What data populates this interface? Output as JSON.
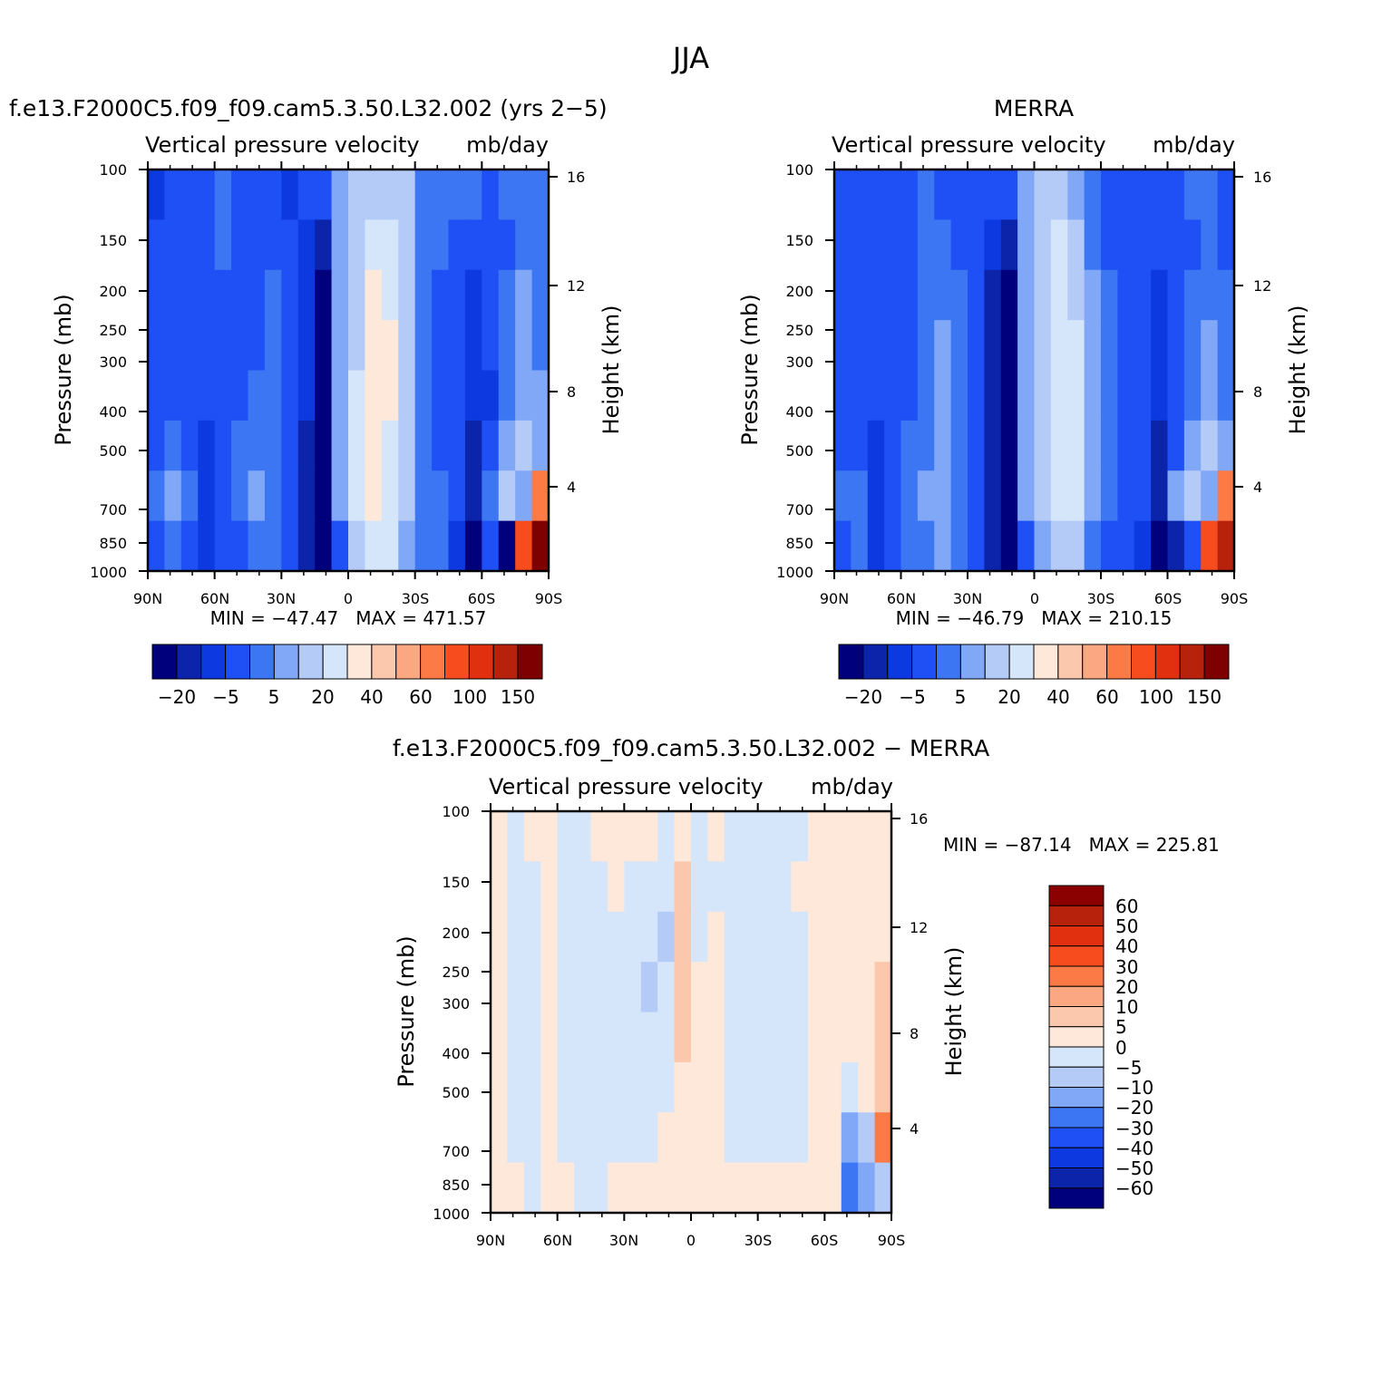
{
  "page_title": "JJA",
  "chart_data": [
    {
      "type": "heatmap",
      "panel_title": "f.e13.F2000C5.f09_f09.cam5.3.50.L32.002 (yrs 2−5)",
      "subtitle_left": "Vertical pressure velocity",
      "subtitle_right": "mb/day",
      "ylabel": "Pressure (mb)",
      "ylabel_right": "Height (km)",
      "x_ticks": [
        "90N",
        "60N",
        "30N",
        "0",
        "30S",
        "60S",
        "90S"
      ],
      "y_ticks": [
        "100",
        "150",
        "200",
        "250",
        "300",
        "400",
        "500",
        "700",
        "850",
        "1000"
      ],
      "y_ticks_right": [
        "16",
        "12",
        "8",
        "4"
      ],
      "stats": "MIN = −47.47   MAX = 471.57",
      "colorbar_labels": [
        "−20",
        "−5",
        "5",
        "20",
        "40",
        "60",
        "100",
        "150"
      ],
      "field": [
        [
          2,
          3,
          3,
          3,
          4,
          3,
          3,
          3,
          2,
          3,
          3,
          5,
          6,
          6,
          6,
          6,
          4,
          4,
          4,
          4,
          3,
          4,
          4,
          4
        ],
        [
          3,
          3,
          3,
          3,
          4,
          3,
          3,
          3,
          3,
          2,
          1,
          5,
          6,
          7,
          7,
          6,
          4,
          4,
          3,
          3,
          3,
          3,
          4,
          4
        ],
        [
          3,
          3,
          3,
          3,
          3,
          3,
          3,
          4,
          3,
          2,
          0,
          5,
          6,
          8,
          7,
          6,
          4,
          3,
          3,
          2,
          3,
          4,
          5,
          4
        ],
        [
          3,
          3,
          3,
          3,
          3,
          3,
          3,
          4,
          3,
          2,
          0,
          5,
          6,
          8,
          8,
          6,
          4,
          3,
          3,
          2,
          3,
          4,
          5,
          4
        ],
        [
          3,
          3,
          3,
          3,
          3,
          3,
          4,
          4,
          3,
          2,
          0,
          5,
          7,
          8,
          8,
          6,
          4,
          3,
          3,
          2,
          2,
          4,
          5,
          5
        ],
        [
          3,
          4,
          3,
          2,
          3,
          4,
          4,
          4,
          3,
          1,
          0,
          5,
          7,
          8,
          7,
          6,
          4,
          3,
          3,
          1,
          3,
          5,
          6,
          5
        ],
        [
          4,
          5,
          4,
          2,
          3,
          4,
          5,
          4,
          3,
          1,
          0,
          5,
          7,
          8,
          7,
          6,
          4,
          4,
          3,
          1,
          4,
          6,
          5,
          11
        ],
        [
          3,
          4,
          3,
          2,
          3,
          3,
          4,
          4,
          3,
          1,
          0,
          3,
          6,
          7,
          7,
          5,
          4,
          4,
          2,
          0,
          3,
          0,
          12,
          15
        ]
      ]
    },
    {
      "type": "heatmap",
      "panel_title": "MERRA",
      "subtitle_left": "Vertical pressure velocity",
      "subtitle_right": "mb/day",
      "ylabel": "Pressure (mb)",
      "ylabel_right": "Height (km)",
      "x_ticks": [
        "90N",
        "60N",
        "30N",
        "0",
        "30S",
        "60S",
        "90S"
      ],
      "y_ticks": [
        "100",
        "150",
        "200",
        "250",
        "300",
        "400",
        "500",
        "700",
        "850",
        "1000"
      ],
      "y_ticks_right": [
        "16",
        "12",
        "8",
        "4"
      ],
      "stats": "MIN = −46.79   MAX = 210.15",
      "colorbar_labels": [
        "−20",
        "−5",
        "5",
        "20",
        "40",
        "60",
        "100",
        "150"
      ],
      "field": [
        [
          3,
          3,
          3,
          3,
          3,
          4,
          3,
          3,
          3,
          3,
          3,
          5,
          6,
          6,
          5,
          4,
          3,
          3,
          3,
          3,
          3,
          4,
          4,
          3
        ],
        [
          3,
          3,
          3,
          3,
          3,
          4,
          4,
          3,
          3,
          2,
          1,
          5,
          6,
          7,
          6,
          4,
          3,
          3,
          3,
          3,
          3,
          3,
          4,
          3
        ],
        [
          3,
          3,
          3,
          3,
          3,
          4,
          4,
          4,
          3,
          1,
          0,
          5,
          6,
          7,
          6,
          5,
          4,
          3,
          3,
          2,
          3,
          4,
          4,
          4
        ],
        [
          3,
          3,
          3,
          3,
          3,
          4,
          5,
          4,
          3,
          1,
          0,
          5,
          6,
          7,
          7,
          5,
          4,
          3,
          3,
          2,
          3,
          4,
          5,
          4
        ],
        [
          3,
          3,
          3,
          3,
          3,
          4,
          5,
          4,
          3,
          1,
          0,
          5,
          6,
          7,
          7,
          5,
          4,
          3,
          3,
          2,
          3,
          4,
          5,
          4
        ],
        [
          3,
          3,
          2,
          3,
          4,
          4,
          5,
          4,
          3,
          1,
          0,
          5,
          6,
          7,
          7,
          5,
          4,
          3,
          3,
          1,
          3,
          5,
          6,
          5
        ],
        [
          4,
          4,
          2,
          3,
          4,
          5,
          5,
          4,
          3,
          1,
          0,
          5,
          6,
          7,
          7,
          5,
          4,
          3,
          3,
          1,
          5,
          6,
          5,
          11
        ],
        [
          3,
          4,
          2,
          3,
          4,
          4,
          5,
          4,
          3,
          1,
          0,
          3,
          5,
          6,
          6,
          4,
          3,
          3,
          2,
          0,
          1,
          3,
          12,
          14
        ]
      ]
    },
    {
      "type": "heatmap",
      "panel_title": "f.e13.F2000C5.f09_f09.cam5.3.50.L32.002 − MERRA",
      "subtitle_left": "Vertical pressure velocity",
      "subtitle_right": "mb/day",
      "ylabel": "Pressure (mb)",
      "ylabel_right": "Height (km)",
      "x_ticks": [
        "90N",
        "60N",
        "30N",
        "0",
        "30S",
        "60S",
        "90S"
      ],
      "y_ticks": [
        "100",
        "150",
        "200",
        "250",
        "300",
        "400",
        "500",
        "700",
        "850",
        "1000"
      ],
      "y_ticks_right": [
        "16",
        "12",
        "8",
        "4"
      ],
      "stats": "MIN = −87.14   MAX = 225.81",
      "colorbar_labels": [
        "60",
        "50",
        "40",
        "30",
        "20",
        "10",
        "5",
        "0",
        "−5",
        "−10",
        "−20",
        "−30",
        "−40",
        "−50",
        "−60"
      ],
      "field": [
        [
          7,
          8,
          7,
          7,
          8,
          8,
          7,
          7,
          7,
          7,
          8,
          7,
          8,
          7,
          8,
          8,
          8,
          8,
          8,
          7,
          7,
          7,
          7,
          7
        ],
        [
          7,
          8,
          8,
          7,
          8,
          8,
          8,
          7,
          8,
          8,
          8,
          6,
          8,
          8,
          8,
          8,
          8,
          8,
          7,
          7,
          7,
          7,
          7,
          7
        ],
        [
          7,
          8,
          8,
          7,
          8,
          8,
          8,
          8,
          8,
          8,
          9,
          6,
          8,
          7,
          8,
          8,
          8,
          8,
          8,
          7,
          7,
          7,
          7,
          7
        ],
        [
          7,
          8,
          8,
          7,
          8,
          8,
          8,
          8,
          8,
          9,
          8,
          6,
          7,
          7,
          8,
          8,
          8,
          8,
          8,
          7,
          7,
          7,
          7,
          6
        ],
        [
          7,
          8,
          8,
          7,
          8,
          8,
          8,
          8,
          8,
          8,
          8,
          6,
          7,
          7,
          8,
          8,
          8,
          8,
          8,
          7,
          7,
          7,
          7,
          6
        ],
        [
          7,
          8,
          8,
          7,
          8,
          8,
          8,
          8,
          8,
          8,
          8,
          7,
          7,
          7,
          8,
          8,
          8,
          8,
          8,
          7,
          7,
          8,
          7,
          6
        ],
        [
          7,
          8,
          8,
          7,
          8,
          8,
          8,
          8,
          8,
          8,
          7,
          7,
          7,
          7,
          8,
          8,
          8,
          8,
          8,
          7,
          7,
          10,
          9,
          4
        ],
        [
          7,
          7,
          8,
          7,
          7,
          8,
          8,
          7,
          7,
          7,
          7,
          7,
          7,
          7,
          7,
          7,
          7,
          7,
          7,
          7,
          7,
          11,
          10,
          9
        ]
      ]
    }
  ],
  "palette_main": [
    "#00007d",
    "#0b24a9",
    "#0d3ae0",
    "#1f50f5",
    "#3c76f2",
    "#80a8f7",
    "#b5cbf7",
    "#d6e6fa",
    "#fde8da",
    "#fcc8ad",
    "#fba882",
    "#fb7a45",
    "#f74d1e",
    "#e0300f",
    "#b7220d",
    "#7f0000"
  ],
  "palette_diff": [
    "#8b0000",
    "#b7220d",
    "#e0300f",
    "#f74d1e",
    "#fb7a45",
    "#fba882",
    "#fcc8ad",
    "#fde8da",
    "#d6e6fa",
    "#b5cbf7",
    "#80a8f7",
    "#3c76f2",
    "#1f50f5",
    "#0d3ae0",
    "#0b24a9",
    "#00007d"
  ]
}
